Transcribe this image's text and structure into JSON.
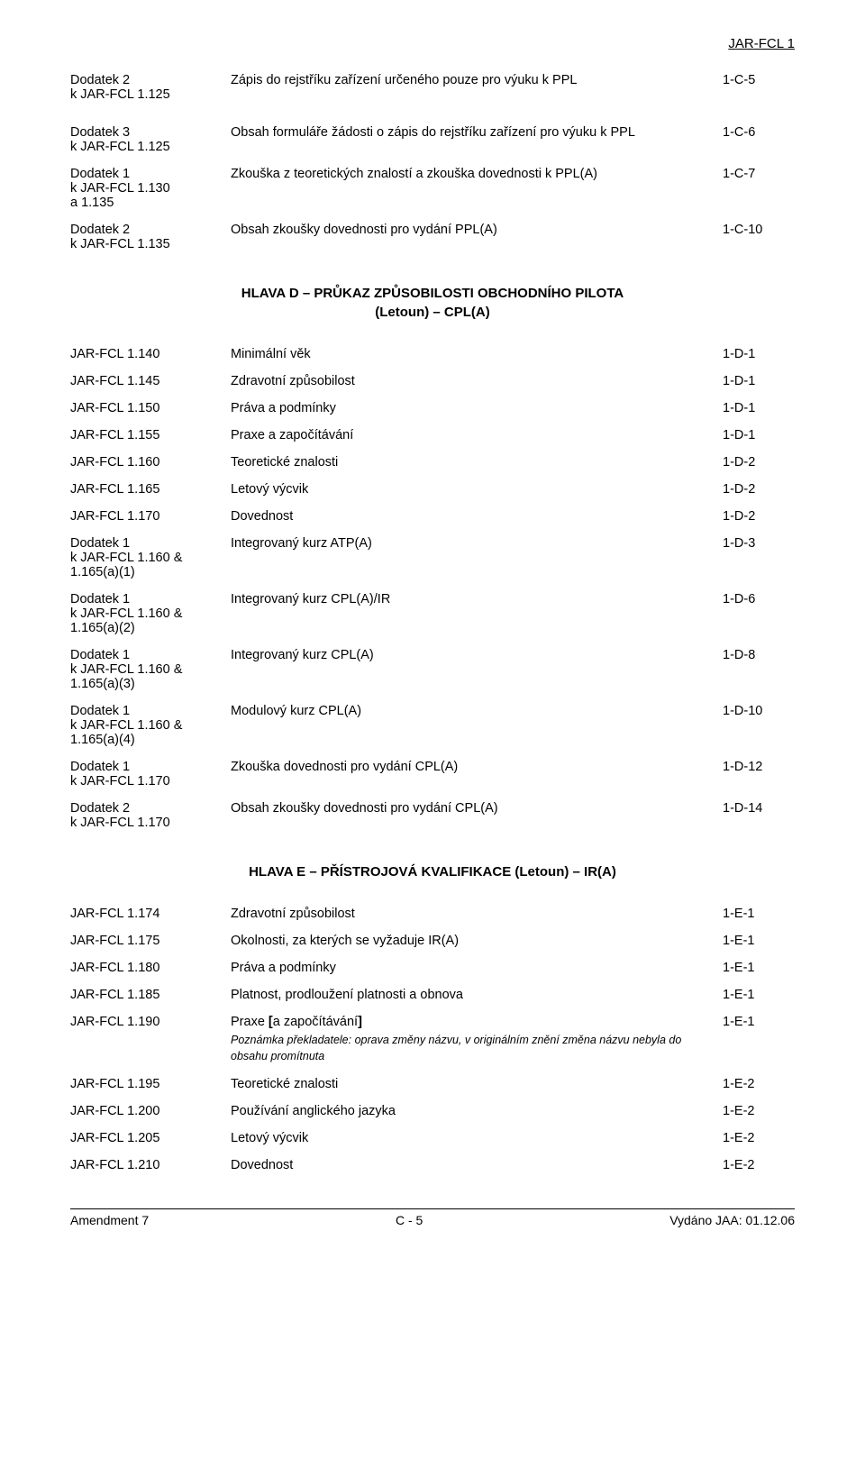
{
  "header": {
    "doc_code": "JAR-FCL 1"
  },
  "block1": [
    {
      "left1": "Dodatek 2",
      "left2": "k JAR-FCL 1.125",
      "mid": "Zápis do rejstříku zařízení určeného pouze pro výuku k PPL",
      "page": "1-C-5"
    }
  ],
  "block2": [
    {
      "left1": "Dodatek 3",
      "left2": "k JAR-FCL 1.125",
      "mid": "Obsah formuláře žádosti o zápis do rejstříku zařízení pro výuku k PPL",
      "page": "1-C-6"
    },
    {
      "left1": "Dodatek 1",
      "left2": "k JAR-FCL 1.130",
      "left3": "a 1.135",
      "mid": "Zkouška z teoretických znalostí a zkouška dovednosti k PPL(A)",
      "page": "1-C-7"
    },
    {
      "left1": "Dodatek 2",
      "left2": "k JAR-FCL 1.135",
      "mid": "Obsah zkoušky dovednosti pro vydání PPL(A)",
      "page": "1-C-10"
    }
  ],
  "section_d": {
    "title_line1": "HLAVA D – PRŮKAZ ZPŮSOBILOSTI OBCHODNÍHO PILOTA",
    "title_line2": "(Letoun) – CPL(A)",
    "rows": [
      {
        "left1": "JAR-FCL 1.140",
        "mid": "Minimální věk",
        "page": "1-D-1"
      },
      {
        "left1": "JAR-FCL 1.145",
        "mid": "Zdravotní způsobilost",
        "page": "1-D-1"
      },
      {
        "left1": "JAR-FCL 1.150",
        "mid": "Práva a podmínky",
        "page": "1-D-1"
      },
      {
        "left1": "JAR-FCL 1.155",
        "mid": "Praxe a započítávání",
        "page": "1-D-1"
      },
      {
        "left1": "JAR-FCL 1.160",
        "mid": "Teoretické znalosti",
        "page": "1-D-2"
      },
      {
        "left1": "JAR-FCL 1.165",
        "mid": "Letový výcvik",
        "page": "1-D-2"
      },
      {
        "left1": "JAR-FCL 1.170",
        "mid": "Dovednost",
        "page": "1-D-2"
      },
      {
        "left1": "Dodatek 1",
        "left2": "k JAR-FCL 1.160 &",
        "left3": "1.165(a)(1)",
        "mid": "Integrovaný kurz ATP(A)",
        "page": "1-D-3"
      },
      {
        "left1": "Dodatek 1",
        "left2": "k JAR-FCL 1.160 &",
        "left3": "1.165(a)(2)",
        "mid": "Integrovaný kurz CPL(A)/IR",
        "page": "1-D-6"
      },
      {
        "left1": "Dodatek 1",
        "left2": "k JAR-FCL 1.160 &",
        "left3": "1.165(a)(3)",
        "mid": "Integrovaný kurz CPL(A)",
        "page": "1-D-8"
      },
      {
        "left1": "Dodatek 1",
        "left2": "k JAR-FCL 1.160 &",
        "left3": "1.165(a)(4)",
        "mid": "Modulový kurz CPL(A)",
        "page": "1-D-10"
      },
      {
        "left1": "Dodatek 1",
        "left2": "k JAR-FCL 1.170",
        "mid": "Zkouška dovednosti pro vydání CPL(A)",
        "page": "1-D-12"
      },
      {
        "left1": "Dodatek 2",
        "left2": "k JAR-FCL 1.170",
        "mid": "Obsah zkoušky dovednosti pro vydání CPL(A)",
        "page": "1-D-14"
      }
    ]
  },
  "section_e": {
    "title": "HLAVA E – PŘÍSTROJOVÁ KVALIFIKACE (Letoun) – IR(A)",
    "rows": [
      {
        "left1": "JAR-FCL 1.174",
        "mid": "Zdravotní způsobilost",
        "page": "1-E-1"
      },
      {
        "left1": "JAR-FCL 1.175",
        "mid": "Okolnosti, za kterých se vyžaduje IR(A)",
        "page": "1-E-1"
      },
      {
        "left1": "JAR-FCL 1.180",
        "mid": "Práva a podmínky",
        "page": "1-E-1"
      },
      {
        "left1": "JAR-FCL 1.185",
        "mid": "Platnost, prodloužení platnosti a obnova",
        "page": "1-E-1"
      },
      {
        "left1": "JAR-FCL 1.190",
        "mid_html": "Praxe <b>[</b>a započítávání<b>]</b>",
        "page": "1-E-1",
        "note": "Poznámka překladatele: oprava změny názvu, v originálním znění změna názvu nebyla do obsahu promítnuta"
      },
      {
        "left1": "JAR-FCL 1.195",
        "mid": "Teoretické znalosti",
        "page": "1-E-2"
      },
      {
        "left1": "JAR-FCL 1.200",
        "mid": "Používání anglického jazyka",
        "page": "1-E-2"
      },
      {
        "left1": "JAR-FCL 1.205",
        "mid": "Letový výcvik",
        "page": "1-E-2"
      },
      {
        "left1": "JAR-FCL 1.210",
        "mid": "Dovednost",
        "page": "1-E-2"
      }
    ]
  },
  "footer": {
    "left": "Amendment 7",
    "center": "C - 5",
    "right": "Vydáno JAA: 01.12.06"
  }
}
